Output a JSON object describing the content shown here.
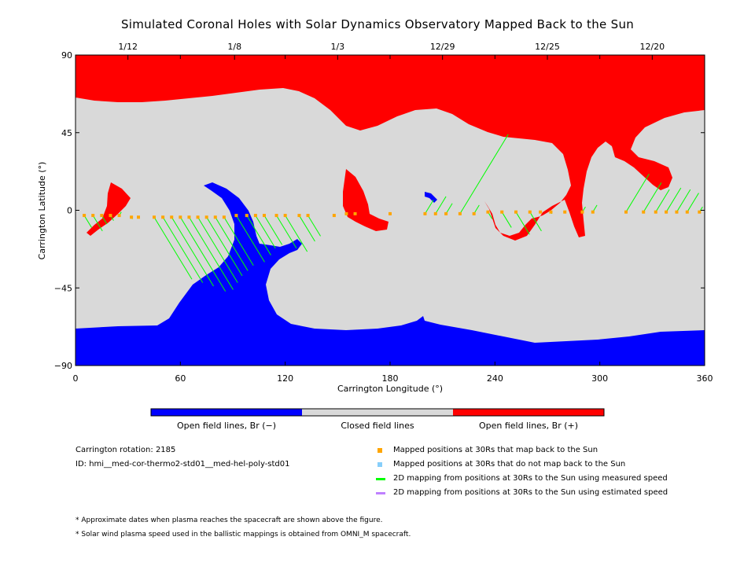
{
  "chart_data": {
    "type": "map",
    "title": "Simulated Coronal Holes with Solar Dynamics Observatory Mapped Back to the Sun",
    "xlabel": "Carrington Longitude (°)",
    "ylabel": "Carrington Latitude (°)",
    "xlim": [
      0,
      360
    ],
    "ylim": [
      -90,
      90
    ],
    "x_ticks": [
      0,
      60,
      120,
      180,
      240,
      300,
      360
    ],
    "y_ticks": [
      -90,
      -45,
      0,
      45,
      90
    ],
    "top_date_ticks": [
      {
        "label": "1/12",
        "lon": 30
      },
      {
        "label": "1/8",
        "lon": 91
      },
      {
        "label": "1/3",
        "lon": 150
      },
      {
        "label": "12/29",
        "lon": 210
      },
      {
        "label": "12/25",
        "lon": 270
      },
      {
        "label": "12/20",
        "lon": 330
      }
    ],
    "colorbar": [
      {
        "label": "Open field lines, Br (−)",
        "color": "#0000ff"
      },
      {
        "label": "Closed field lines",
        "color": "#d9d9d9"
      },
      {
        "label": "Open field lines, Br (+)",
        "color": "#ff0000"
      }
    ],
    "mapped_points": [
      {
        "lon": 5,
        "lat": -3,
        "slat": -10
      },
      {
        "lon": 10,
        "lat": -3,
        "slat": -12
      },
      {
        "lon": 15,
        "lat": -3,
        "slat": -8
      },
      {
        "lon": 20,
        "lat": -3,
        "slat": -6
      },
      {
        "lon": 25,
        "lat": -3,
        "slat": -1
      },
      {
        "lon": 32,
        "lat": -4,
        "slat": -5
      },
      {
        "lon": 36,
        "lat": -4,
        "slat": -4
      },
      {
        "lon": 45,
        "lat": -4,
        "slat": -40
      },
      {
        "lon": 50,
        "lat": -4,
        "slat": -42
      },
      {
        "lon": 55,
        "lat": -4,
        "slat": -44
      },
      {
        "lon": 60,
        "lat": -4,
        "slat": -47
      },
      {
        "lon": 65,
        "lat": -4,
        "slat": -46
      },
      {
        "lon": 70,
        "lat": -4,
        "slat": -42
      },
      {
        "lon": 75,
        "lat": -4,
        "slat": -38
      },
      {
        "lon": 80,
        "lat": -4,
        "slat": -35
      },
      {
        "lon": 85,
        "lat": -4,
        "slat": -32
      },
      {
        "lon": 92,
        "lat": -3,
        "slat": -30
      },
      {
        "lon": 98,
        "lat": -3,
        "slat": -26
      },
      {
        "lon": 103,
        "lat": -3,
        "slat": -22
      },
      {
        "lon": 108,
        "lat": -3,
        "slat": -20
      },
      {
        "lon": 115,
        "lat": -3,
        "slat": -22
      },
      {
        "lon": 120,
        "lat": -3,
        "slat": -24
      },
      {
        "lon": 128,
        "lat": -3,
        "slat": -18
      },
      {
        "lon": 133,
        "lat": -3,
        "slat": -15
      },
      {
        "lon": 148,
        "lat": -3,
        "slat": -3
      },
      {
        "lon": 155,
        "lat": -2,
        "slat": -3
      },
      {
        "lon": 160,
        "lat": -2,
        "slat": -2
      },
      {
        "lon": 180,
        "lat": -2,
        "slat": -2
      },
      {
        "lon": 200,
        "lat": -2,
        "slat": 6
      },
      {
        "lon": 206,
        "lat": -2,
        "slat": 8
      },
      {
        "lon": 212,
        "lat": -2,
        "slat": 4
      },
      {
        "lon": 220,
        "lat": -2,
        "slat": 44
      },
      {
        "lon": 228,
        "lat": -2,
        "slat": 3
      },
      {
        "lon": 236,
        "lat": -1,
        "slat": -5
      },
      {
        "lon": 244,
        "lat": -1,
        "slat": -10
      },
      {
        "lon": 252,
        "lat": -1,
        "slat": -14
      },
      {
        "lon": 260,
        "lat": -1,
        "slat": -12
      },
      {
        "lon": 266,
        "lat": -1,
        "slat": -1
      },
      {
        "lon": 272,
        "lat": -1,
        "slat": -2
      },
      {
        "lon": 280,
        "lat": -1,
        "slat": -1
      },
      {
        "lon": 290,
        "lat": -1,
        "slat": 2
      },
      {
        "lon": 296,
        "lat": -1,
        "slat": 3
      },
      {
        "lon": 315,
        "lat": -1,
        "slat": 21
      },
      {
        "lon": 325,
        "lat": -1,
        "slat": 16
      },
      {
        "lon": 332,
        "lat": -1,
        "slat": 12
      },
      {
        "lon": 338,
        "lat": -1,
        "slat": 13
      },
      {
        "lon": 344,
        "lat": -1,
        "slat": 12
      },
      {
        "lon": 350,
        "lat": -1,
        "slat": 10
      },
      {
        "lon": 357,
        "lat": -1,
        "slat": 2
      }
    ]
  },
  "info": {
    "rotation": "Carrington rotation: 2185",
    "id": "ID: hmi__med-cor-thermo2-std01__med-hel-poly-std01"
  },
  "legend": [
    {
      "kind": "square",
      "color": "#ffa500",
      "label": "Mapped positions at 30Rs that map back to the Sun"
    },
    {
      "kind": "square",
      "color": "#87cefa",
      "label": "Mapped positions at 30Rs that do not map back to the Sun"
    },
    {
      "kind": "line",
      "color": "#00ff00",
      "label": "2D mapping from positions at 30Rs to the Sun using measured speed"
    },
    {
      "kind": "line",
      "color": "#bf80ff",
      "label": "2D mapping from positions at 30Rs to the Sun using estimated speed"
    }
  ],
  "notes": [
    "* Approximate dates when plasma reaches the spacecraft are shown above the figure.",
    "* Solar wind plasma speed used in the ballistic mappings is obtained from OMNI_M spacecraft."
  ]
}
